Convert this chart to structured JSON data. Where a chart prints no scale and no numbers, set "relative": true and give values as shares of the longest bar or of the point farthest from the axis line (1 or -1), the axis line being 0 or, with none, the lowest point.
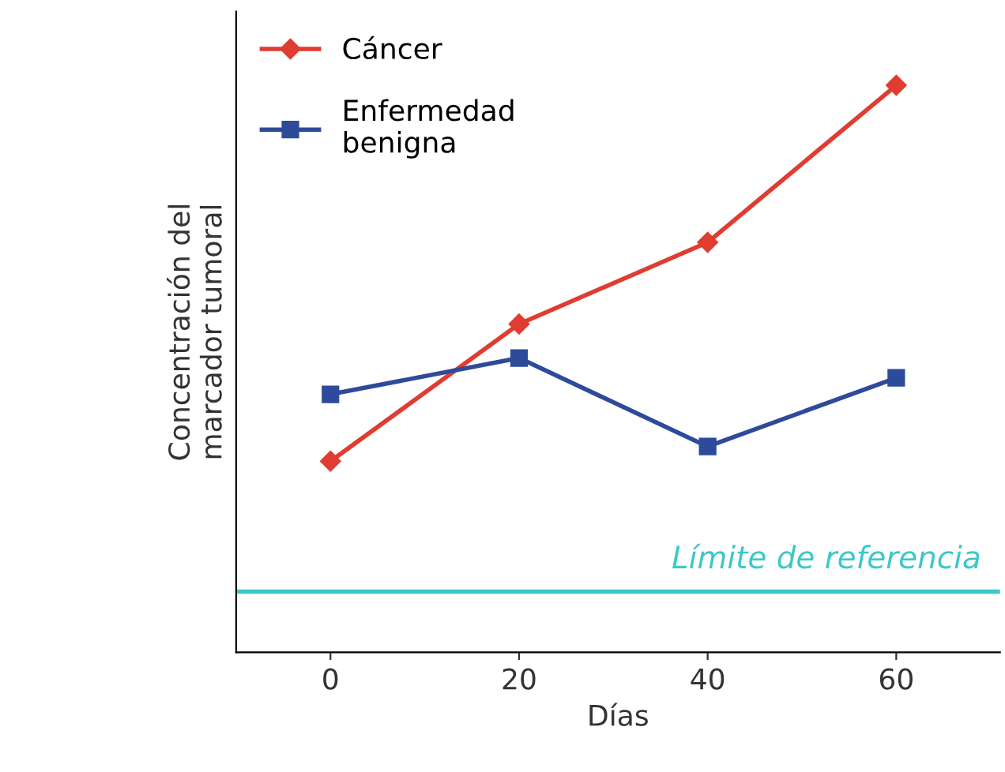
{
  "chart_data": {
    "type": "line",
    "relative": true,
    "xlabel": "Días",
    "ylabel": "Concentración del\nmarcador tumoral",
    "x": [
      0,
      20,
      40,
      60
    ],
    "xlim": [
      -10,
      71
    ],
    "xticks": [
      0,
      20,
      40,
      60
    ],
    "series": [
      {
        "name": "Cáncer",
        "color": "#e03c31",
        "marker": "diamond",
        "values": [
          0.337,
          0.579,
          0.723,
          1.0
        ]
      },
      {
        "name": "Enfermedad\nbenigna",
        "color": "#2e4a9a",
        "marker": "square",
        "values": [
          0.455,
          0.519,
          0.363,
          0.484
        ]
      }
    ],
    "ref_lines": [
      {
        "axis": "y",
        "value": 0.107,
        "label": "Límite de referencia",
        "color": "#3cc8c8"
      }
    ],
    "legend": "top left",
    "grid": false
  }
}
